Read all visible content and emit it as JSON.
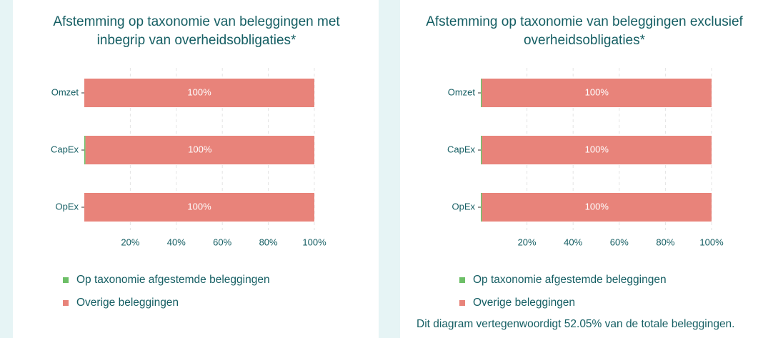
{
  "chart_data": [
    {
      "type": "stacked_barh",
      "title": "Afstemming op taxonomie van beleggingen met inbegrip van overheidsobligaties*",
      "categories": [
        "Omzet",
        "CapEx",
        "OpEx"
      ],
      "series": [
        {
          "name": "Op taxonomie afgestemde beleggingen",
          "color": "#6dbf67",
          "values": [
            0,
            0.5,
            0
          ]
        },
        {
          "name": "Overige beleggingen",
          "color": "#e8837a",
          "values": [
            100,
            99.5,
            100
          ],
          "value_labels": [
            "100%",
            "100%",
            "100%"
          ]
        }
      ],
      "xlim": [
        0,
        100
      ],
      "xticks": [
        {
          "value": 20,
          "label": "20%"
        },
        {
          "value": 40,
          "label": "40%"
        },
        {
          "value": 60,
          "label": "60%"
        },
        {
          "value": 80,
          "label": "80%"
        },
        {
          "value": 100,
          "label": "100%"
        }
      ],
      "grid": true
    },
    {
      "type": "stacked_barh",
      "title": "Afstemming op taxonomie van beleggingen exclusief overheidsobligaties*",
      "categories": [
        "Omzet",
        "CapEx",
        "OpEx"
      ],
      "series": [
        {
          "name": "Op taxonomie afgestemde beleggingen",
          "color": "#6dbf67",
          "values": [
            0.5,
            0.5,
            0.5
          ]
        },
        {
          "name": "Overige beleggingen",
          "color": "#e8837a",
          "values": [
            99.5,
            99.5,
            99.5
          ],
          "value_labels": [
            "100%",
            "100%",
            "100%"
          ]
        }
      ],
      "xlim": [
        0,
        100
      ],
      "xticks": [
        {
          "value": 20,
          "label": "20%"
        },
        {
          "value": 40,
          "label": "40%"
        },
        {
          "value": 60,
          "label": "60%"
        },
        {
          "value": 80,
          "label": "80%"
        },
        {
          "value": 100,
          "label": "100%"
        }
      ],
      "grid": true,
      "note": "Dit diagram vertegenwoordigt 52.05% van de totale beleggingen."
    }
  ]
}
